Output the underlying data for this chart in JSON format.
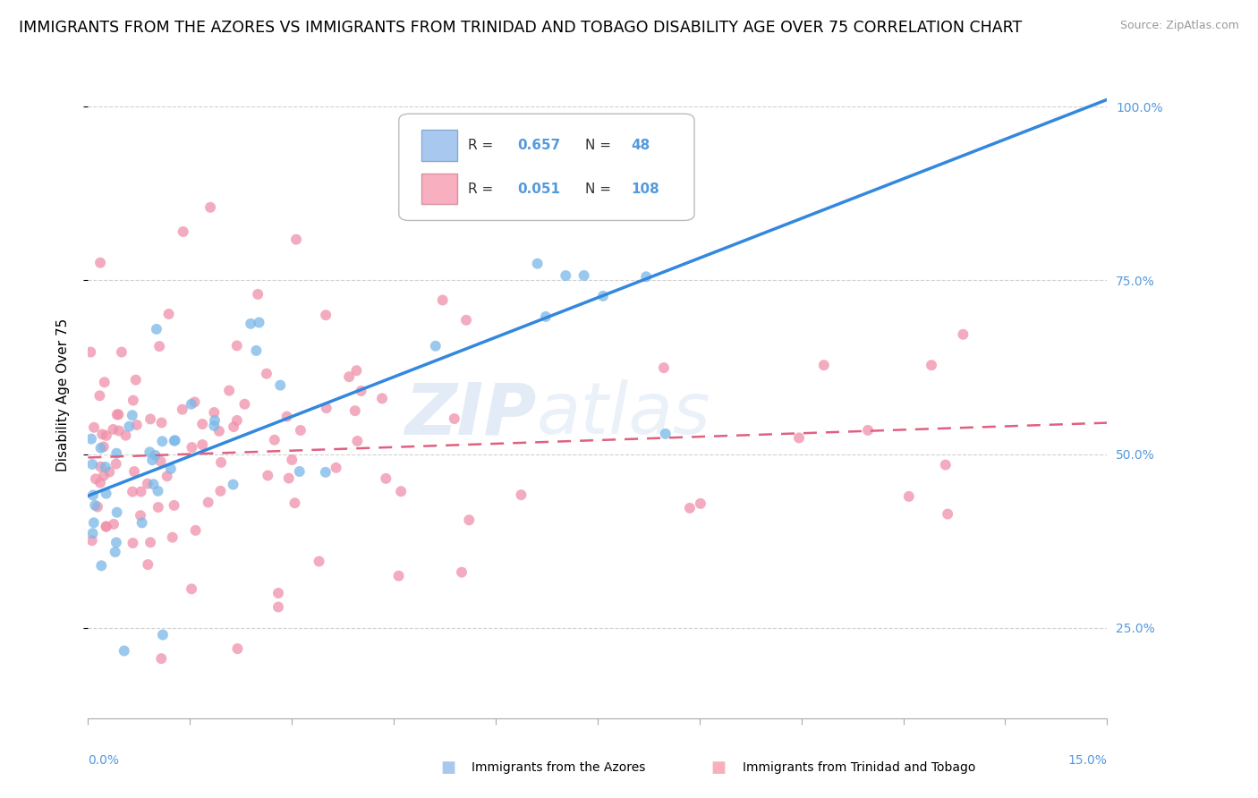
{
  "title": "IMMIGRANTS FROM THE AZORES VS IMMIGRANTS FROM TRINIDAD AND TOBAGO DISABILITY AGE OVER 75 CORRELATION CHART",
  "source": "Source: ZipAtlas.com",
  "ylabel_label": "Disability Age Over 75",
  "watermark_zip": "ZIP",
  "watermark_atlas": "atlas",
  "right_ytick_labels": [
    "100.0%",
    "75.0%",
    "50.0%",
    "25.0%"
  ],
  "right_ytick_vals": [
    1.0,
    0.75,
    0.5,
    0.25
  ],
  "xlim": [
    0.0,
    0.15
  ],
  "ylim": [
    0.12,
    1.05
  ],
  "bg_color": "#ffffff",
  "grid_color": "#cccccc",
  "azores_color": "#7ab8e8",
  "azores_line_color": "#3388dd",
  "trinidad_color": "#f090aa",
  "trinidad_line_color": "#e06080",
  "title_fontsize": 12.5,
  "source_fontsize": 9,
  "axis_label_fontsize": 11,
  "tick_color": "#5599dd",
  "tick_fontsize": 10,
  "legend_R1": "0.657",
  "legend_N1": "48",
  "legend_R2": "0.051",
  "legend_N2": "108",
  "bottom_legend1": "Immigrants from the Azores",
  "bottom_legend2": "Immigrants from Trinidad and Tobago",
  "az_trend_x0": 0.0,
  "az_trend_y0": 0.44,
  "az_trend_x1": 0.15,
  "az_trend_y1": 1.01,
  "tt_trend_x0": 0.0,
  "tt_trend_y0": 0.495,
  "tt_trend_x1": 0.15,
  "tt_trend_y1": 0.545
}
